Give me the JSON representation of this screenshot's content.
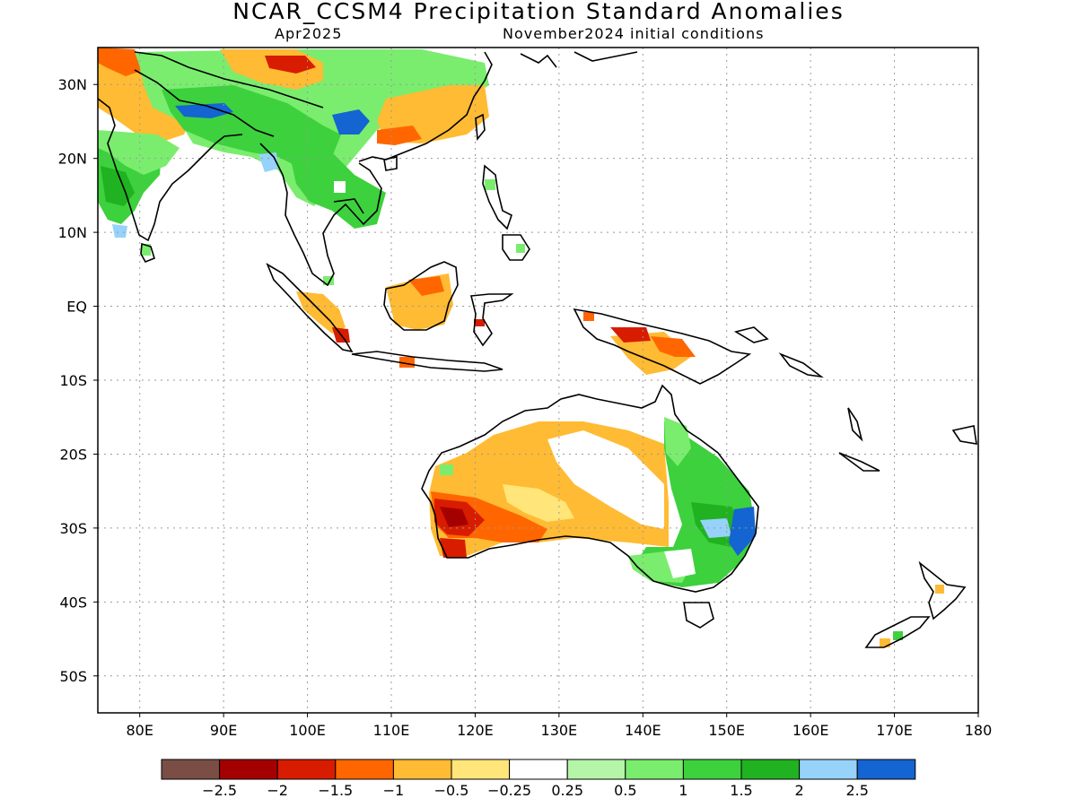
{
  "header": {
    "title": "NCAR_CCSM4 Precipitation Standard Anomalies",
    "target_month": "Apr2025",
    "initial_conditions": "November2024 initial conditions"
  },
  "axes": {
    "lat_labels": [
      "30N",
      "20N",
      "10N",
      "EQ",
      "10S",
      "20S",
      "30S",
      "40S",
      "50S"
    ],
    "lat_values": [
      30,
      20,
      10,
      0,
      -10,
      -20,
      -30,
      -40,
      -50
    ],
    "lon_labels": [
      "80E",
      "90E",
      "100E",
      "110E",
      "120E",
      "130E",
      "140E",
      "150E",
      "160E",
      "170E",
      "180"
    ],
    "lon_values": [
      80,
      90,
      100,
      110,
      120,
      130,
      140,
      150,
      160,
      170,
      180
    ],
    "lon_range": [
      75,
      180
    ],
    "lat_range": [
      -55,
      35
    ],
    "grid": "dotted"
  },
  "colorbar": {
    "colors": [
      "#7a4e45",
      "#a50000",
      "#d81c00",
      "#ff6600",
      "#ffbb33",
      "#ffe57a",
      "#ffffff",
      "#b4f5a8",
      "#7aed6e",
      "#3dd13d",
      "#20b220",
      "#96d2fa",
      "#1464d2"
    ],
    "labels": [
      "−2.5",
      "−2",
      "−1.5",
      "−1",
      "−0.5",
      "−0.25",
      "0.25",
      "0.5",
      "1",
      "1.5",
      "2",
      "2.5"
    ]
  }
}
